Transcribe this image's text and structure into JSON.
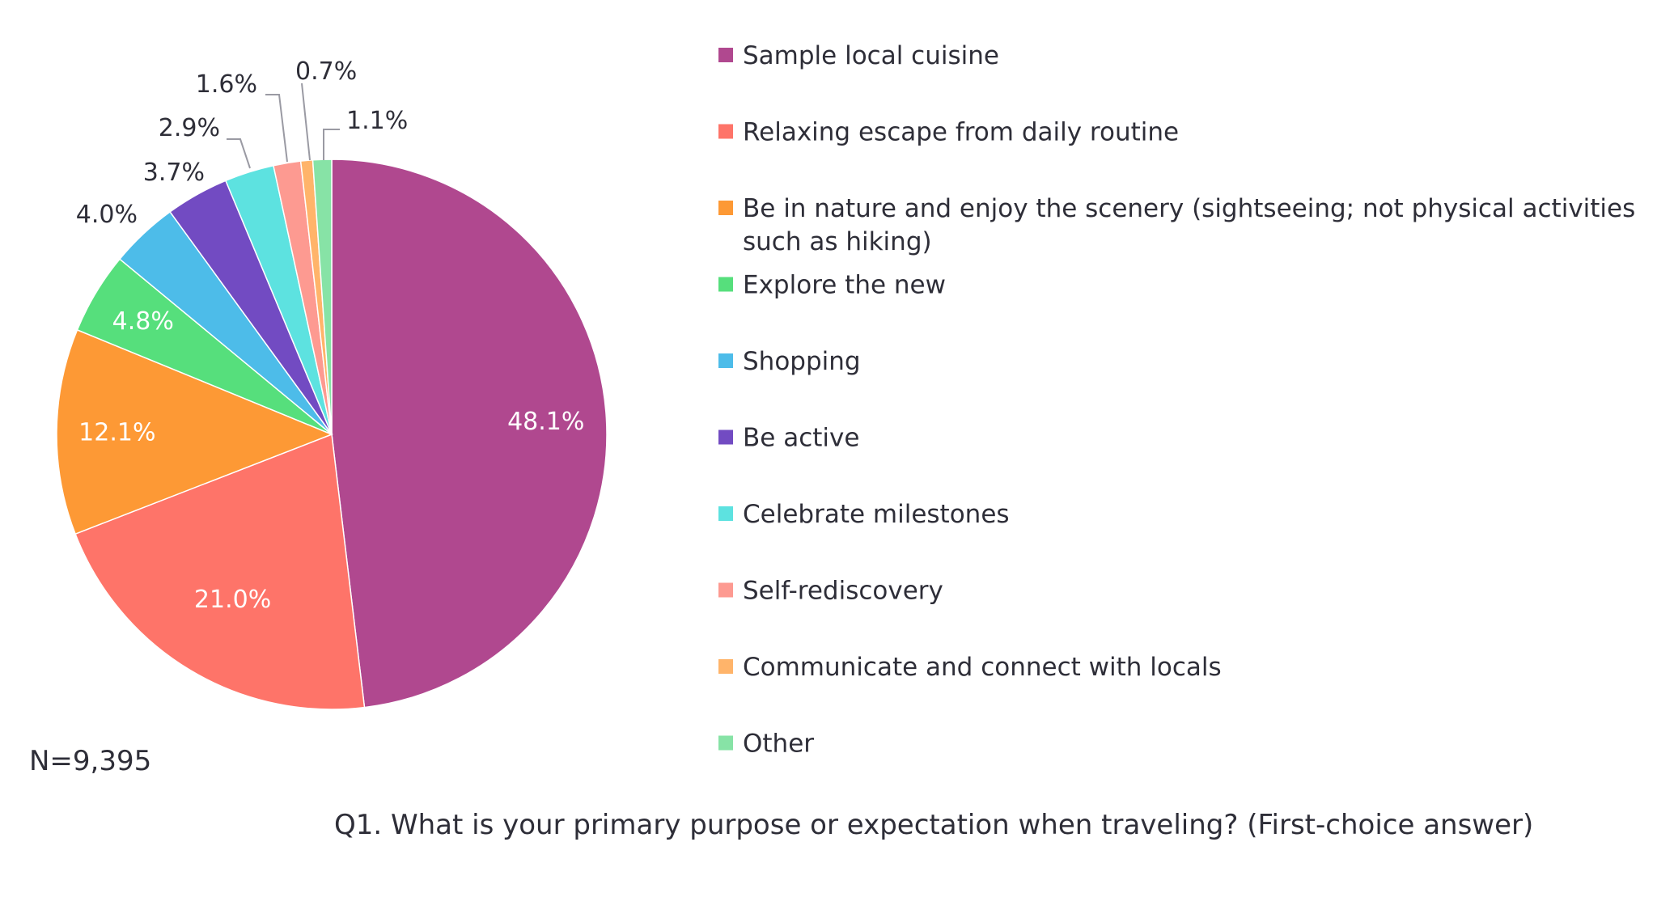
{
  "chart_data": {
    "type": "pie",
    "categories": [
      "Sample local cuisine",
      "Relaxing escape from daily routine",
      "Be in nature and enjoy the scenery (sightseeing; not physical activities such as hiking)",
      "Explore the new",
      "Shopping",
      "Be active",
      "Celebrate milestones",
      "Self-rediscovery",
      "Communicate and connect with locals",
      "Other"
    ],
    "values": [
      48.1,
      21.0,
      12.1,
      4.8,
      4.0,
      3.7,
      2.9,
      1.6,
      0.7,
      1.1
    ],
    "value_labels": [
      "48.1%",
      "21.0%",
      "12.1%",
      "4.8%",
      "4.0%",
      "3.7%",
      "2.9%",
      "1.6%",
      "0.7%",
      "1.1%"
    ],
    "colors": [
      "#b0488f",
      "#fe7469",
      "#fd9935",
      "#56df7c",
      "#4dbce9",
      "#724bc2",
      "#5de2e0",
      "#fd9a91",
      "#ffb46a",
      "#87e3a6"
    ],
    "legend_position": "right",
    "title": "",
    "note": "N=9,395",
    "question": "Q1. What is your primary purpose or expectation when traveling? (First-choice answer)"
  }
}
